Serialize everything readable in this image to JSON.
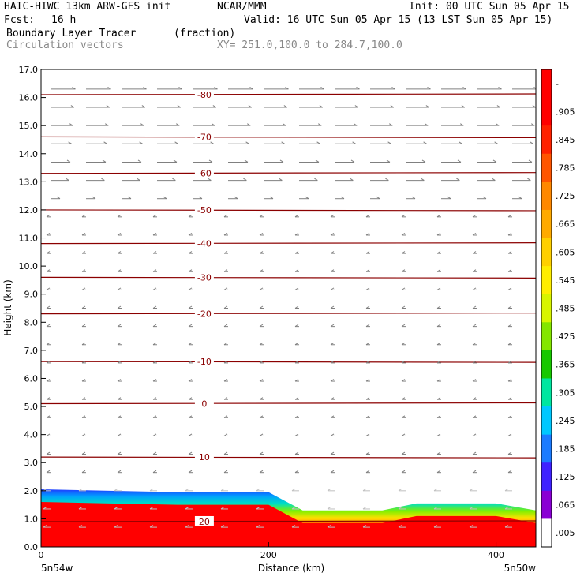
{
  "header": {
    "model": "HAIC-HIWC 13km ARW-GFS init",
    "org": "NCAR/MMM",
    "init": "Init: 00 UTC Sun 05 Apr 15",
    "fcst_label": "Fcst:",
    "fcst_value": "16 h",
    "valid": "Valid: 16 UTC Sun 05 Apr 15 (13 LST Sun 05 Apr 15)",
    "field": "Boundary Layer Tracer",
    "units": "(fraction)",
    "vectors": "Circulation vectors",
    "xy": "XY= 251.0,100.0 to 284.7,100.0"
  },
  "chart_data": {
    "type": "heatmap",
    "xlabel": "Distance (km)",
    "ylabel": "Height (km)",
    "xlim": [
      0,
      435
    ],
    "ylim": [
      0,
      17
    ],
    "x_ticks": [
      0,
      200,
      400
    ],
    "y_ticks": [
      "0.0",
      "1.0",
      "2.0",
      "3.0",
      "4.0",
      "5.0",
      "6.0",
      "7.0",
      "8.0",
      "9.0",
      "10.0",
      "11.0",
      "12.0",
      "13.0",
      "14.0",
      "15.0",
      "16.0",
      "17.0"
    ],
    "x_endpoint_labels": [
      "5n54w",
      "5n50w"
    ],
    "colorbar_labels": [
      "-",
      ".905",
      ".845",
      ".785",
      ".725",
      ".665",
      ".605",
      ".545",
      ".485",
      ".425",
      ".365",
      ".305",
      ".245",
      ".185",
      ".125",
      ".065",
      ".005"
    ],
    "colorbar_colors": [
      "#ffffff",
      "#8a00d4",
      "#3f22ff",
      "#1b7bff",
      "#00c8ff",
      "#00e6a0",
      "#17c800",
      "#84e600",
      "#d8f500",
      "#fff000",
      "#ffd000",
      "#ffaa00",
      "#ff7a00",
      "#ff4a00",
      "#ff1e00",
      "#ff0000",
      "#ff0000"
    ],
    "contours": [
      {
        "label": "-80",
        "height": 16.1
      },
      {
        "label": "-70",
        "height": 14.6
      },
      {
        "label": "-60",
        "height": 13.3
      },
      {
        "label": "-50",
        "height": 12.0
      },
      {
        "label": "-40",
        "height": 10.8
      },
      {
        "label": "-30",
        "height": 9.6
      },
      {
        "label": "-20",
        "height": 8.3
      },
      {
        "label": "-10",
        "height": 6.6
      },
      {
        "label": "0",
        "height": 5.1
      },
      {
        "label": "10",
        "height": 3.2
      },
      {
        "label": "20",
        "height": 0.9
      }
    ],
    "tracer_top_km": [
      [
        0,
        2.05
      ],
      [
        120,
        1.95
      ],
      [
        200,
        1.95
      ],
      [
        230,
        1.3
      ],
      [
        300,
        1.3
      ],
      [
        330,
        1.55
      ],
      [
        400,
        1.55
      ],
      [
        435,
        1.3
      ]
    ]
  }
}
